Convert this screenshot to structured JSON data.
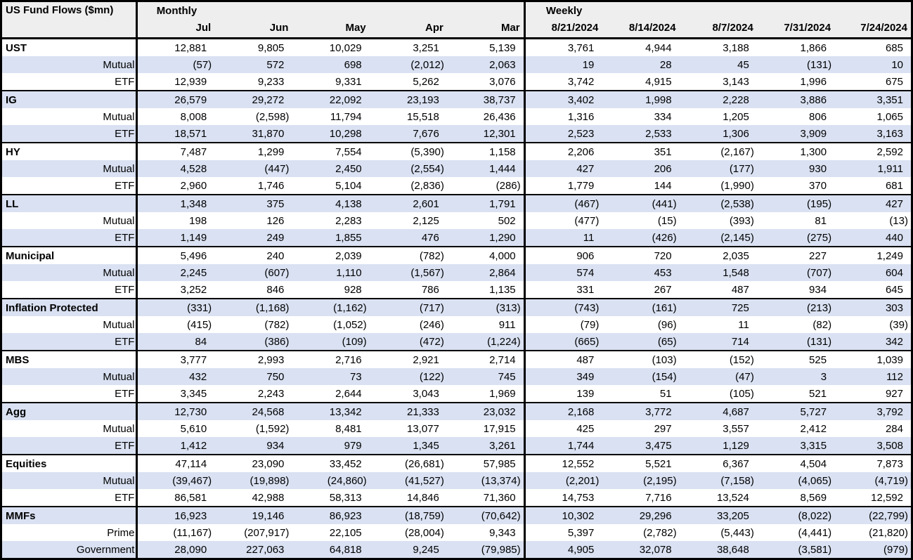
{
  "colors": {
    "stripe": "#d9e1f2",
    "header_bg": "#eeeeee",
    "border": "#000000",
    "text": "#000000",
    "row_bg": "#ffffff"
  },
  "chart_data": {
    "type": "table",
    "title": "US Fund Flows ($mn)",
    "units": "$mn",
    "negative_format": "parentheses",
    "layout": {
      "grid": "zebra-rows",
      "group_separators": true
    },
    "sections": [
      {
        "label": "Monthly",
        "columns": [
          "Jul",
          "Jun",
          "May",
          "Apr",
          "Mar"
        ]
      },
      {
        "label": "Weekly",
        "columns": [
          "8/21/2024",
          "8/14/2024",
          "8/7/2024",
          "7/31/2024",
          "7/24/2024"
        ]
      }
    ],
    "groups": [
      {
        "rows": [
          {
            "label": "UST",
            "monthly": [
              "12,881",
              "9,805",
              "10,029",
              "3,251",
              "5,139"
            ],
            "weekly": [
              "3,761",
              "4,944",
              "3,188",
              "1,866",
              "685"
            ]
          },
          {
            "label": "Mutual",
            "monthly": [
              "(57)",
              "572",
              "698",
              "(2,012)",
              "2,063"
            ],
            "weekly": [
              "19",
              "28",
              "45",
              "(131)",
              "10"
            ]
          },
          {
            "label": "ETF",
            "monthly": [
              "12,939",
              "9,233",
              "9,331",
              "5,262",
              "3,076"
            ],
            "weekly": [
              "3,742",
              "4,915",
              "3,143",
              "1,996",
              "675"
            ]
          }
        ]
      },
      {
        "rows": [
          {
            "label": "IG",
            "monthly": [
              "26,579",
              "29,272",
              "22,092",
              "23,193",
              "38,737"
            ],
            "weekly": [
              "3,402",
              "1,998",
              "2,228",
              "3,886",
              "3,351"
            ]
          },
          {
            "label": "Mutual",
            "monthly": [
              "8,008",
              "(2,598)",
              "11,794",
              "15,518",
              "26,436"
            ],
            "weekly": [
              "1,316",
              "334",
              "1,205",
              "806",
              "1,065"
            ]
          },
          {
            "label": "ETF",
            "monthly": [
              "18,571",
              "31,870",
              "10,298",
              "7,676",
              "12,301"
            ],
            "weekly": [
              "2,523",
              "2,533",
              "1,306",
              "3,909",
              "3,163"
            ]
          }
        ]
      },
      {
        "rows": [
          {
            "label": "HY",
            "monthly": [
              "7,487",
              "1,299",
              "7,554",
              "(5,390)",
              "1,158"
            ],
            "weekly": [
              "2,206",
              "351",
              "(2,167)",
              "1,300",
              "2,592"
            ]
          },
          {
            "label": "Mutual",
            "monthly": [
              "4,528",
              "(447)",
              "2,450",
              "(2,554)",
              "1,444"
            ],
            "weekly": [
              "427",
              "206",
              "(177)",
              "930",
              "1,911"
            ]
          },
          {
            "label": "ETF",
            "monthly": [
              "2,960",
              "1,746",
              "5,104",
              "(2,836)",
              "(286)"
            ],
            "weekly": [
              "1,779",
              "144",
              "(1,990)",
              "370",
              "681"
            ]
          }
        ]
      },
      {
        "rows": [
          {
            "label": "LL",
            "monthly": [
              "1,348",
              "375",
              "4,138",
              "2,601",
              "1,791"
            ],
            "weekly": [
              "(467)",
              "(441)",
              "(2,538)",
              "(195)",
              "427"
            ]
          },
          {
            "label": "Mutual",
            "monthly": [
              "198",
              "126",
              "2,283",
              "2,125",
              "502"
            ],
            "weekly": [
              "(477)",
              "(15)",
              "(393)",
              "81",
              "(13)"
            ]
          },
          {
            "label": "ETF",
            "monthly": [
              "1,149",
              "249",
              "1,855",
              "476",
              "1,290"
            ],
            "weekly": [
              "11",
              "(426)",
              "(2,145)",
              "(275)",
              "440"
            ]
          }
        ]
      },
      {
        "rows": [
          {
            "label": "Municipal",
            "monthly": [
              "5,496",
              "240",
              "2,039",
              "(782)",
              "4,000"
            ],
            "weekly": [
              "906",
              "720",
              "2,035",
              "227",
              "1,249"
            ]
          },
          {
            "label": "Mutual",
            "monthly": [
              "2,245",
              "(607)",
              "1,110",
              "(1,567)",
              "2,864"
            ],
            "weekly": [
              "574",
              "453",
              "1,548",
              "(707)",
              "604"
            ]
          },
          {
            "label": "ETF",
            "monthly": [
              "3,252",
              "846",
              "928",
              "786",
              "1,135"
            ],
            "weekly": [
              "331",
              "267",
              "487",
              "934",
              "645"
            ]
          }
        ]
      },
      {
        "rows": [
          {
            "label": "Inflation Protected",
            "monthly": [
              "(331)",
              "(1,168)",
              "(1,162)",
              "(717)",
              "(313)"
            ],
            "weekly": [
              "(743)",
              "(161)",
              "725",
              "(213)",
              "303"
            ]
          },
          {
            "label": "Mutual",
            "monthly": [
              "(415)",
              "(782)",
              "(1,052)",
              "(246)",
              "911"
            ],
            "weekly": [
              "(79)",
              "(96)",
              "11",
              "(82)",
              "(39)"
            ]
          },
          {
            "label": "ETF",
            "monthly": [
              "84",
              "(386)",
              "(109)",
              "(472)",
              "(1,224)"
            ],
            "weekly": [
              "(665)",
              "(65)",
              "714",
              "(131)",
              "342"
            ]
          }
        ]
      },
      {
        "rows": [
          {
            "label": "MBS",
            "monthly": [
              "3,777",
              "2,993",
              "2,716",
              "2,921",
              "2,714"
            ],
            "weekly": [
              "487",
              "(103)",
              "(152)",
              "525",
              "1,039"
            ]
          },
          {
            "label": "Mutual",
            "monthly": [
              "432",
              "750",
              "73",
              "(122)",
              "745"
            ],
            "weekly": [
              "349",
              "(154)",
              "(47)",
              "3",
              "112"
            ]
          },
          {
            "label": "ETF",
            "monthly": [
              "3,345",
              "2,243",
              "2,644",
              "3,043",
              "1,969"
            ],
            "weekly": [
              "139",
              "51",
              "(105)",
              "521",
              "927"
            ]
          }
        ]
      },
      {
        "rows": [
          {
            "label": "Agg",
            "monthly": [
              "12,730",
              "24,568",
              "13,342",
              "21,333",
              "23,032"
            ],
            "weekly": [
              "2,168",
              "3,772",
              "4,687",
              "5,727",
              "3,792"
            ]
          },
          {
            "label": "Mutual",
            "monthly": [
              "5,610",
              "(1,592)",
              "8,481",
              "13,077",
              "17,915"
            ],
            "weekly": [
              "425",
              "297",
              "3,557",
              "2,412",
              "284"
            ]
          },
          {
            "label": "ETF",
            "monthly": [
              "1,412",
              "934",
              "979",
              "1,345",
              "3,261"
            ],
            "weekly": [
              "1,744",
              "3,475",
              "1,129",
              "3,315",
              "3,508"
            ]
          }
        ]
      },
      {
        "rows": [
          {
            "label": "Equities",
            "monthly": [
              "47,114",
              "23,090",
              "33,452",
              "(26,681)",
              "57,985"
            ],
            "weekly": [
              "12,552",
              "5,521",
              "6,367",
              "4,504",
              "7,873"
            ]
          },
          {
            "label": "Mutual",
            "monthly": [
              "(39,467)",
              "(19,898)",
              "(24,860)",
              "(41,527)",
              "(13,374)"
            ],
            "weekly": [
              "(2,201)",
              "(2,195)",
              "(7,158)",
              "(4,065)",
              "(4,719)"
            ]
          },
          {
            "label": "ETF",
            "monthly": [
              "86,581",
              "42,988",
              "58,313",
              "14,846",
              "71,360"
            ],
            "weekly": [
              "14,753",
              "7,716",
              "13,524",
              "8,569",
              "12,592"
            ]
          }
        ]
      },
      {
        "rows": [
          {
            "label": "MMFs",
            "monthly": [
              "16,923",
              "19,146",
              "86,923",
              "(18,759)",
              "(70,642)"
            ],
            "weekly": [
              "10,302",
              "29,296",
              "33,205",
              "(8,022)",
              "(22,799)"
            ]
          },
          {
            "label": "Prime",
            "monthly": [
              "(11,167)",
              "(207,917)",
              "22,105",
              "(28,004)",
              "9,343"
            ],
            "weekly": [
              "5,397",
              "(2,782)",
              "(5,443)",
              "(4,441)",
              "(21,820)"
            ]
          },
          {
            "label": "Government",
            "monthly": [
              "28,090",
              "227,063",
              "64,818",
              "9,245",
              "(79,985)"
            ],
            "weekly": [
              "4,905",
              "32,078",
              "38,648",
              "(3,581)",
              "(979)"
            ]
          }
        ]
      }
    ]
  }
}
